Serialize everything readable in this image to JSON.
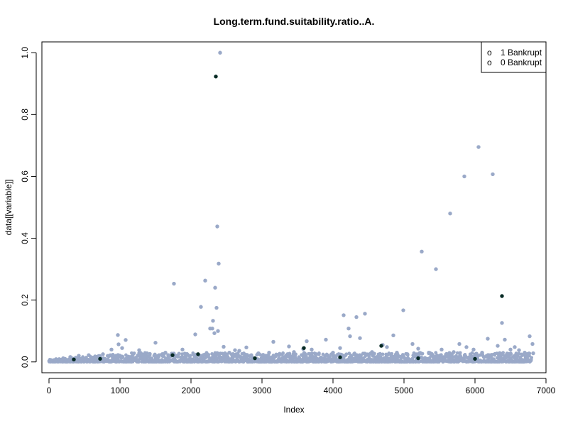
{
  "chart_data": {
    "type": "scatter",
    "title": "Long.term.fund.suitability.ratio..A.",
    "xlabel": "Index",
    "ylabel": "data[[variable]]",
    "xlim": [
      -100,
      7000
    ],
    "ylim": [
      -0.035,
      1.035
    ],
    "x_ticks": [
      0,
      1000,
      2000,
      3000,
      4000,
      5000,
      6000,
      7000
    ],
    "y_ticks": [
      0.0,
      0.2,
      0.4,
      0.6,
      0.8,
      1.0
    ],
    "x_tick_labels": [
      "0",
      "1000",
      "2000",
      "3000",
      "4000",
      "5000",
      "6000",
      "7000"
    ],
    "y_tick_labels": [
      "0.0",
      "0.2",
      "0.4",
      "0.6",
      "0.8",
      "1.0"
    ],
    "legend_position": "top-right",
    "legend": [
      {
        "symbol": "o",
        "label": "1 Bankrupt",
        "color": "#000000"
      },
      {
        "symbol": "o",
        "label": "0 Bankrupt",
        "color": "#9aa9c8"
      }
    ],
    "colors": {
      "bankrupt_0": "#9aa9c8",
      "bankrupt_1": "#062a24"
    },
    "series": [
      {
        "name": "0 Bankrupt",
        "points": [
          [
            2410,
            1.0
          ],
          [
            6050,
            0.695
          ],
          [
            5850,
            0.6
          ],
          [
            6250,
            0.607
          ],
          [
            5650,
            0.48
          ],
          [
            2370,
            0.438
          ],
          [
            2390,
            0.318
          ],
          [
            5250,
            0.357
          ],
          [
            5450,
            0.3
          ],
          [
            2200,
            0.263
          ],
          [
            1760,
            0.253
          ],
          [
            2340,
            0.24
          ],
          [
            2140,
            0.178
          ],
          [
            2360,
            0.175
          ],
          [
            4150,
            0.151
          ],
          [
            4450,
            0.156
          ],
          [
            4330,
            0.145
          ],
          [
            4990,
            0.167
          ],
          [
            2310,
            0.133
          ],
          [
            6380,
            0.126
          ],
          [
            4220,
            0.108
          ],
          [
            2270,
            0.108
          ],
          [
            2300,
            0.108
          ],
          [
            2380,
            0.1
          ],
          [
            2330,
            0.093
          ],
          [
            2060,
            0.089
          ],
          [
            970,
            0.087
          ],
          [
            1080,
            0.071
          ],
          [
            4240,
            0.083
          ],
          [
            4380,
            0.077
          ],
          [
            4850,
            0.086
          ],
          [
            6770,
            0.083
          ],
          [
            6180,
            0.075
          ],
          [
            6420,
            0.072
          ],
          [
            3900,
            0.072
          ],
          [
            3630,
            0.067
          ],
          [
            3160,
            0.065
          ],
          [
            1500,
            0.062
          ],
          [
            980,
            0.057
          ],
          [
            6810,
            0.058
          ],
          [
            5120,
            0.058
          ],
          [
            5780,
            0.058
          ],
          [
            5880,
            0.048
          ],
          [
            6320,
            0.052
          ],
          [
            4700,
            0.055
          ],
          [
            4760,
            0.048
          ],
          [
            3380,
            0.05
          ],
          [
            2460,
            0.049
          ],
          [
            2780,
            0.047
          ],
          [
            1030,
            0.045
          ],
          [
            1270,
            0.038
          ],
          [
            880,
            0.04
          ],
          [
            1880,
            0.04
          ],
          [
            2680,
            0.036
          ],
          [
            2620,
            0.038
          ],
          [
            3580,
            0.042
          ],
          [
            3700,
            0.04
          ],
          [
            4100,
            0.045
          ],
          [
            5200,
            0.043
          ],
          [
            5530,
            0.04
          ],
          [
            5980,
            0.04
          ],
          [
            6500,
            0.04
          ],
          [
            6560,
            0.048
          ],
          [
            6620,
            0.038
          ],
          [
            3450,
            0.032
          ],
          [
            3100,
            0.03
          ],
          [
            2950,
            0.028
          ],
          [
            2540,
            0.03
          ],
          [
            2220,
            0.028
          ],
          [
            1640,
            0.03
          ],
          [
            1420,
            0.026
          ],
          [
            1180,
            0.024
          ],
          [
            760,
            0.025
          ],
          [
            560,
            0.022
          ],
          [
            420,
            0.02
          ],
          [
            300,
            0.016
          ],
          [
            200,
            0.012
          ],
          [
            100,
            0.009
          ],
          [
            30,
            0.006
          ],
          [
            4000,
            0.03
          ],
          [
            4550,
            0.032
          ],
          [
            4900,
            0.03
          ],
          [
            5350,
            0.03
          ],
          [
            5700,
            0.032
          ],
          [
            6100,
            0.03
          ],
          [
            6700,
            0.03
          ],
          [
            6820,
            0.028
          ],
          [
            650,
            0.018
          ],
          [
            850,
            0.02
          ],
          [
            1350,
            0.02
          ],
          [
            1550,
            0.022
          ],
          [
            1950,
            0.024
          ],
          [
            2500,
            0.02
          ],
          [
            2850,
            0.022
          ],
          [
            3250,
            0.024
          ],
          [
            3800,
            0.025
          ],
          [
            4300,
            0.024
          ],
          [
            4650,
            0.022
          ],
          [
            5050,
            0.024
          ],
          [
            5600,
            0.026
          ],
          [
            6000,
            0.024
          ],
          [
            6450,
            0.026
          ],
          [
            6750,
            0.024
          ]
        ]
      },
      {
        "name": "1 Bankrupt",
        "points": [
          [
            2350,
            0.923
          ],
          [
            6380,
            0.213
          ],
          [
            4680,
            0.052
          ],
          [
            3590,
            0.045
          ],
          [
            2100,
            0.025
          ],
          [
            1740,
            0.022
          ],
          [
            2900,
            0.012
          ],
          [
            720,
            0.01
          ],
          [
            350,
            0.008
          ],
          [
            4100,
            0.015
          ],
          [
            5200,
            0.012
          ],
          [
            6000,
            0.01
          ]
        ]
      }
    ],
    "baseline_band": {
      "range_max": 0.03,
      "color_series": "0 Bankrupt"
    }
  }
}
